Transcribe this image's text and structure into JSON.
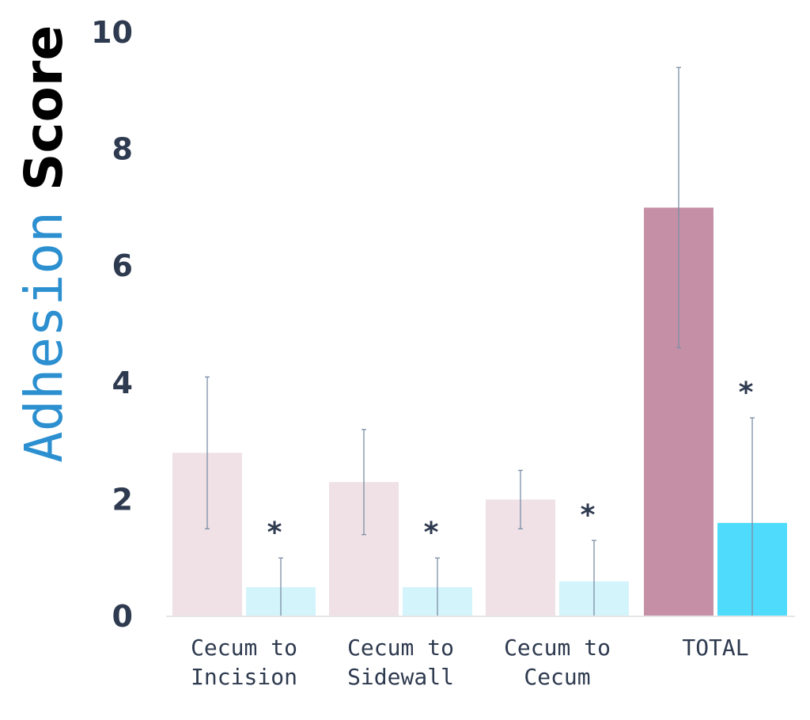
{
  "chart_data": {
    "type": "bar",
    "ylabel_part1": "Adhesion",
    "ylabel_part2": "Score",
    "ylim": [
      0,
      10
    ],
    "y_ticks": [
      "0",
      "2",
      "4",
      "6",
      "8",
      "10"
    ],
    "grid": false,
    "categories": [
      {
        "lines": [
          "Cecum to",
          "Incision"
        ]
      },
      {
        "lines": [
          "Cecum to",
          "Sidewall"
        ]
      },
      {
        "lines": [
          "Cecum to",
          "Cecum"
        ]
      },
      {
        "lines": [
          "TOTAL"
        ]
      }
    ],
    "series": [
      {
        "values": [
          2.8,
          2.3,
          2.0,
          7.0
        ],
        "error": [
          1.3,
          0.9,
          0.5,
          2.4
        ],
        "colors": [
          "#efe1e5",
          "#efe1e5",
          "#efe1e5",
          "#c590a6"
        ]
      },
      {
        "values": [
          0.5,
          0.5,
          0.6,
          1.6
        ],
        "error": [
          0.5,
          0.5,
          0.7,
          1.8
        ],
        "colors": [
          "#d4f4fb",
          "#d4f4fb",
          "#d4f4fb",
          "#4fdbfb"
        ],
        "significance": [
          "*",
          "*",
          "*",
          "*"
        ]
      }
    ]
  }
}
